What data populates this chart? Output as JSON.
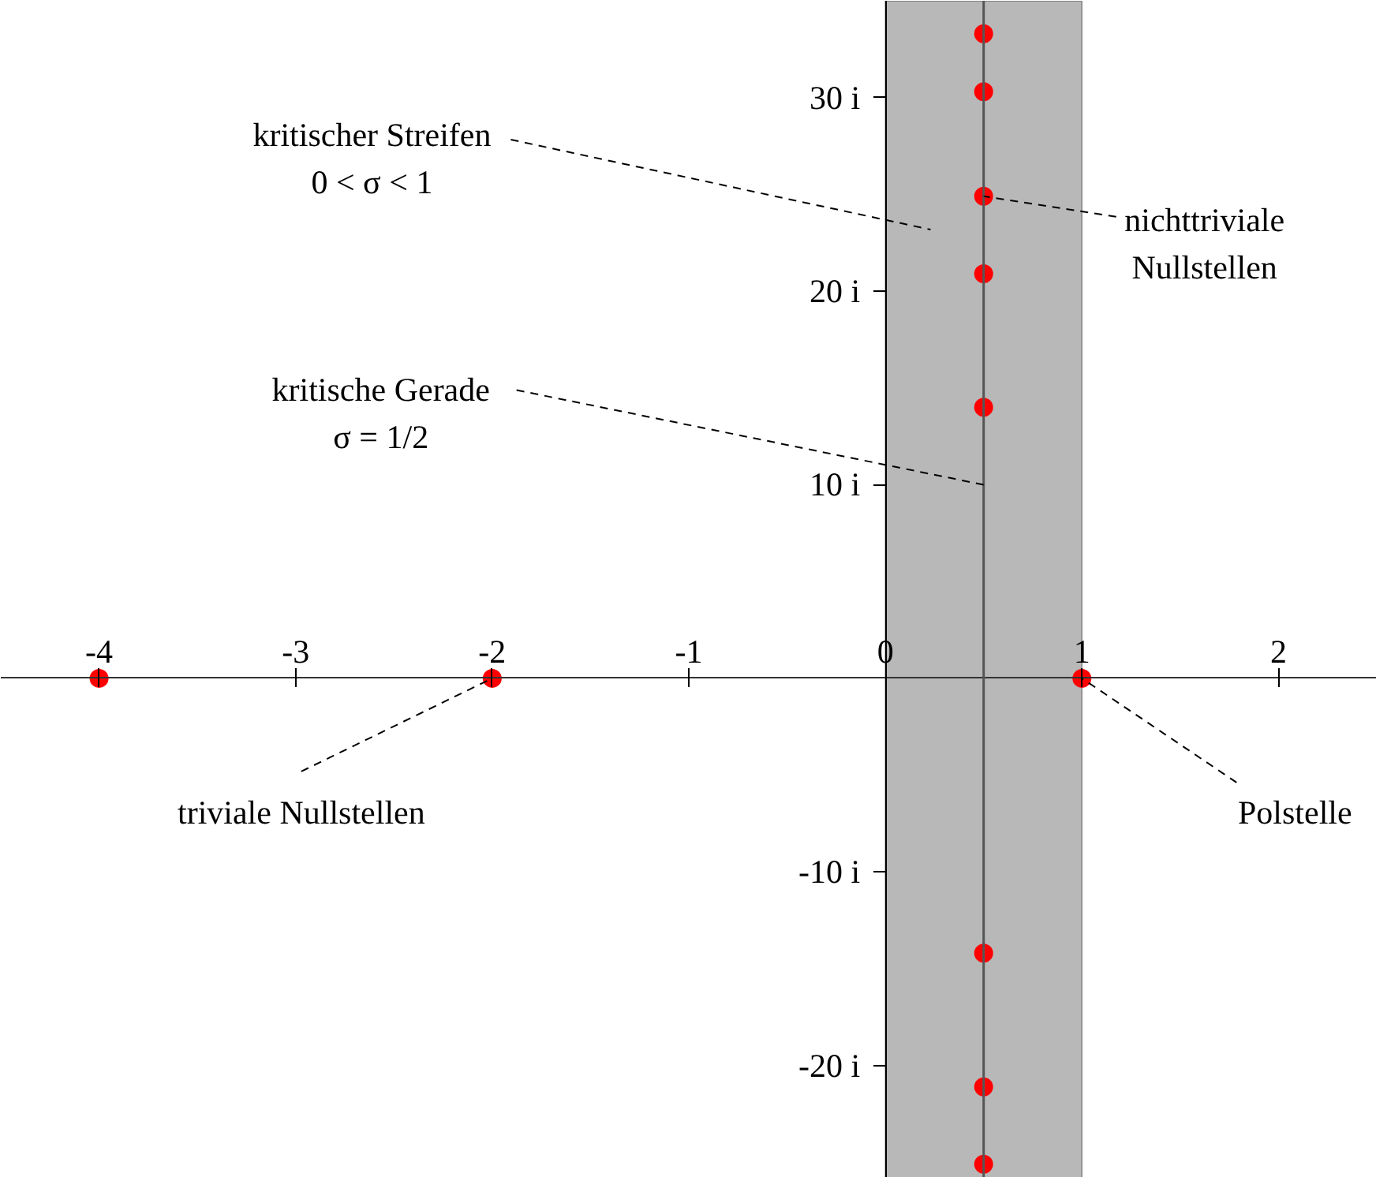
{
  "chart_data": {
    "type": "scatter",
    "xlim": [
      -4.5,
      2.5
    ],
    "ylim": [
      -25.8,
      35
    ],
    "xticks": [
      -4,
      -3,
      -2,
      -1,
      0,
      1,
      2
    ],
    "yticks": [
      {
        "value": -20,
        "label": "-20 i"
      },
      {
        "value": -10,
        "label": "-10 i"
      },
      {
        "value": 10,
        "label": "10 i"
      },
      {
        "value": 20,
        "label": "20 i"
      },
      {
        "value": 30,
        "label": "30 i"
      }
    ],
    "series": [
      {
        "color": "#ff0000",
        "x": [
          0.5,
          0.5,
          0.5,
          0.5,
          0.5,
          0.5,
          0.5,
          0.5,
          -4,
          -2,
          1
        ],
        "values": [
          33.3,
          30.3,
          24.9,
          20.9,
          14.0,
          -14.2,
          -21.1,
          -25.1,
          0,
          0,
          0
        ]
      }
    ],
    "bands": [
      {
        "axis": "x",
        "from": 0,
        "to": 1,
        "color": "#b8b8b8"
      }
    ],
    "ref_lines": [
      {
        "axis": "x",
        "value": 0.5,
        "color": "#555555",
        "line_style": "solid"
      }
    ],
    "annotations": [
      "kritischer Streifen\n0 < σ < 1",
      {
        "text": "kritische Gerade\nσ = 1/2",
        "x": 0.5,
        "y": 10
      },
      {
        "text": "nichttriviale\nNullstellen",
        "x": 0.5,
        "y": 24.9
      },
      {
        "text": "triviale Nullstellen",
        "x": -2,
        "y": 0
      },
      {
        "text": "Polstelle",
        "x": 1,
        "y": 0
      }
    ],
    "marker": "circle"
  }
}
